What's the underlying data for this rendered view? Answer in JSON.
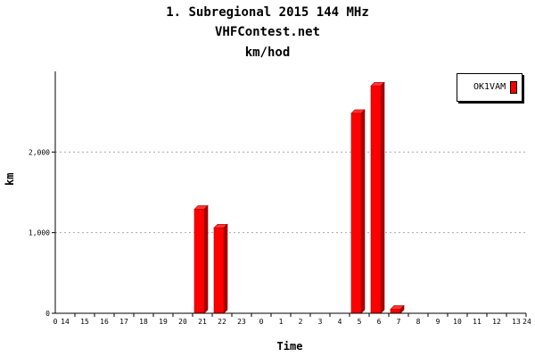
{
  "chart_data": {
    "type": "bar",
    "title": "1. Subregional 2015 144 MHz",
    "subtitle": "VHFContest.net",
    "subtitle2": "km/hod",
    "xlabel": "Time",
    "ylabel": "km",
    "categories": [
      "14",
      "15",
      "16",
      "17",
      "18",
      "19",
      "20",
      "21",
      "22",
      "23",
      "0",
      "1",
      "2",
      "3",
      "4",
      "5",
      "6",
      "7",
      "8",
      "9",
      "10",
      "11",
      "12",
      "13"
    ],
    "x_edge_labels": [
      "0",
      "24"
    ],
    "series": [
      {
        "name": "OK1VAM",
        "color": "#ff0000",
        "values": [
          0,
          0,
          0,
          0,
          0,
          0,
          0,
          1290,
          1060,
          0,
          0,
          0,
          0,
          0,
          0,
          2480,
          2820,
          50,
          0,
          0,
          0,
          0,
          0,
          0
        ]
      }
    ],
    "ylim": [
      0,
      3000
    ],
    "yticks": [
      0,
      1000,
      2000
    ],
    "ytick_labels": [
      "0",
      "1,000",
      "2,000"
    ],
    "grid": true,
    "legend_position": "top-right"
  }
}
